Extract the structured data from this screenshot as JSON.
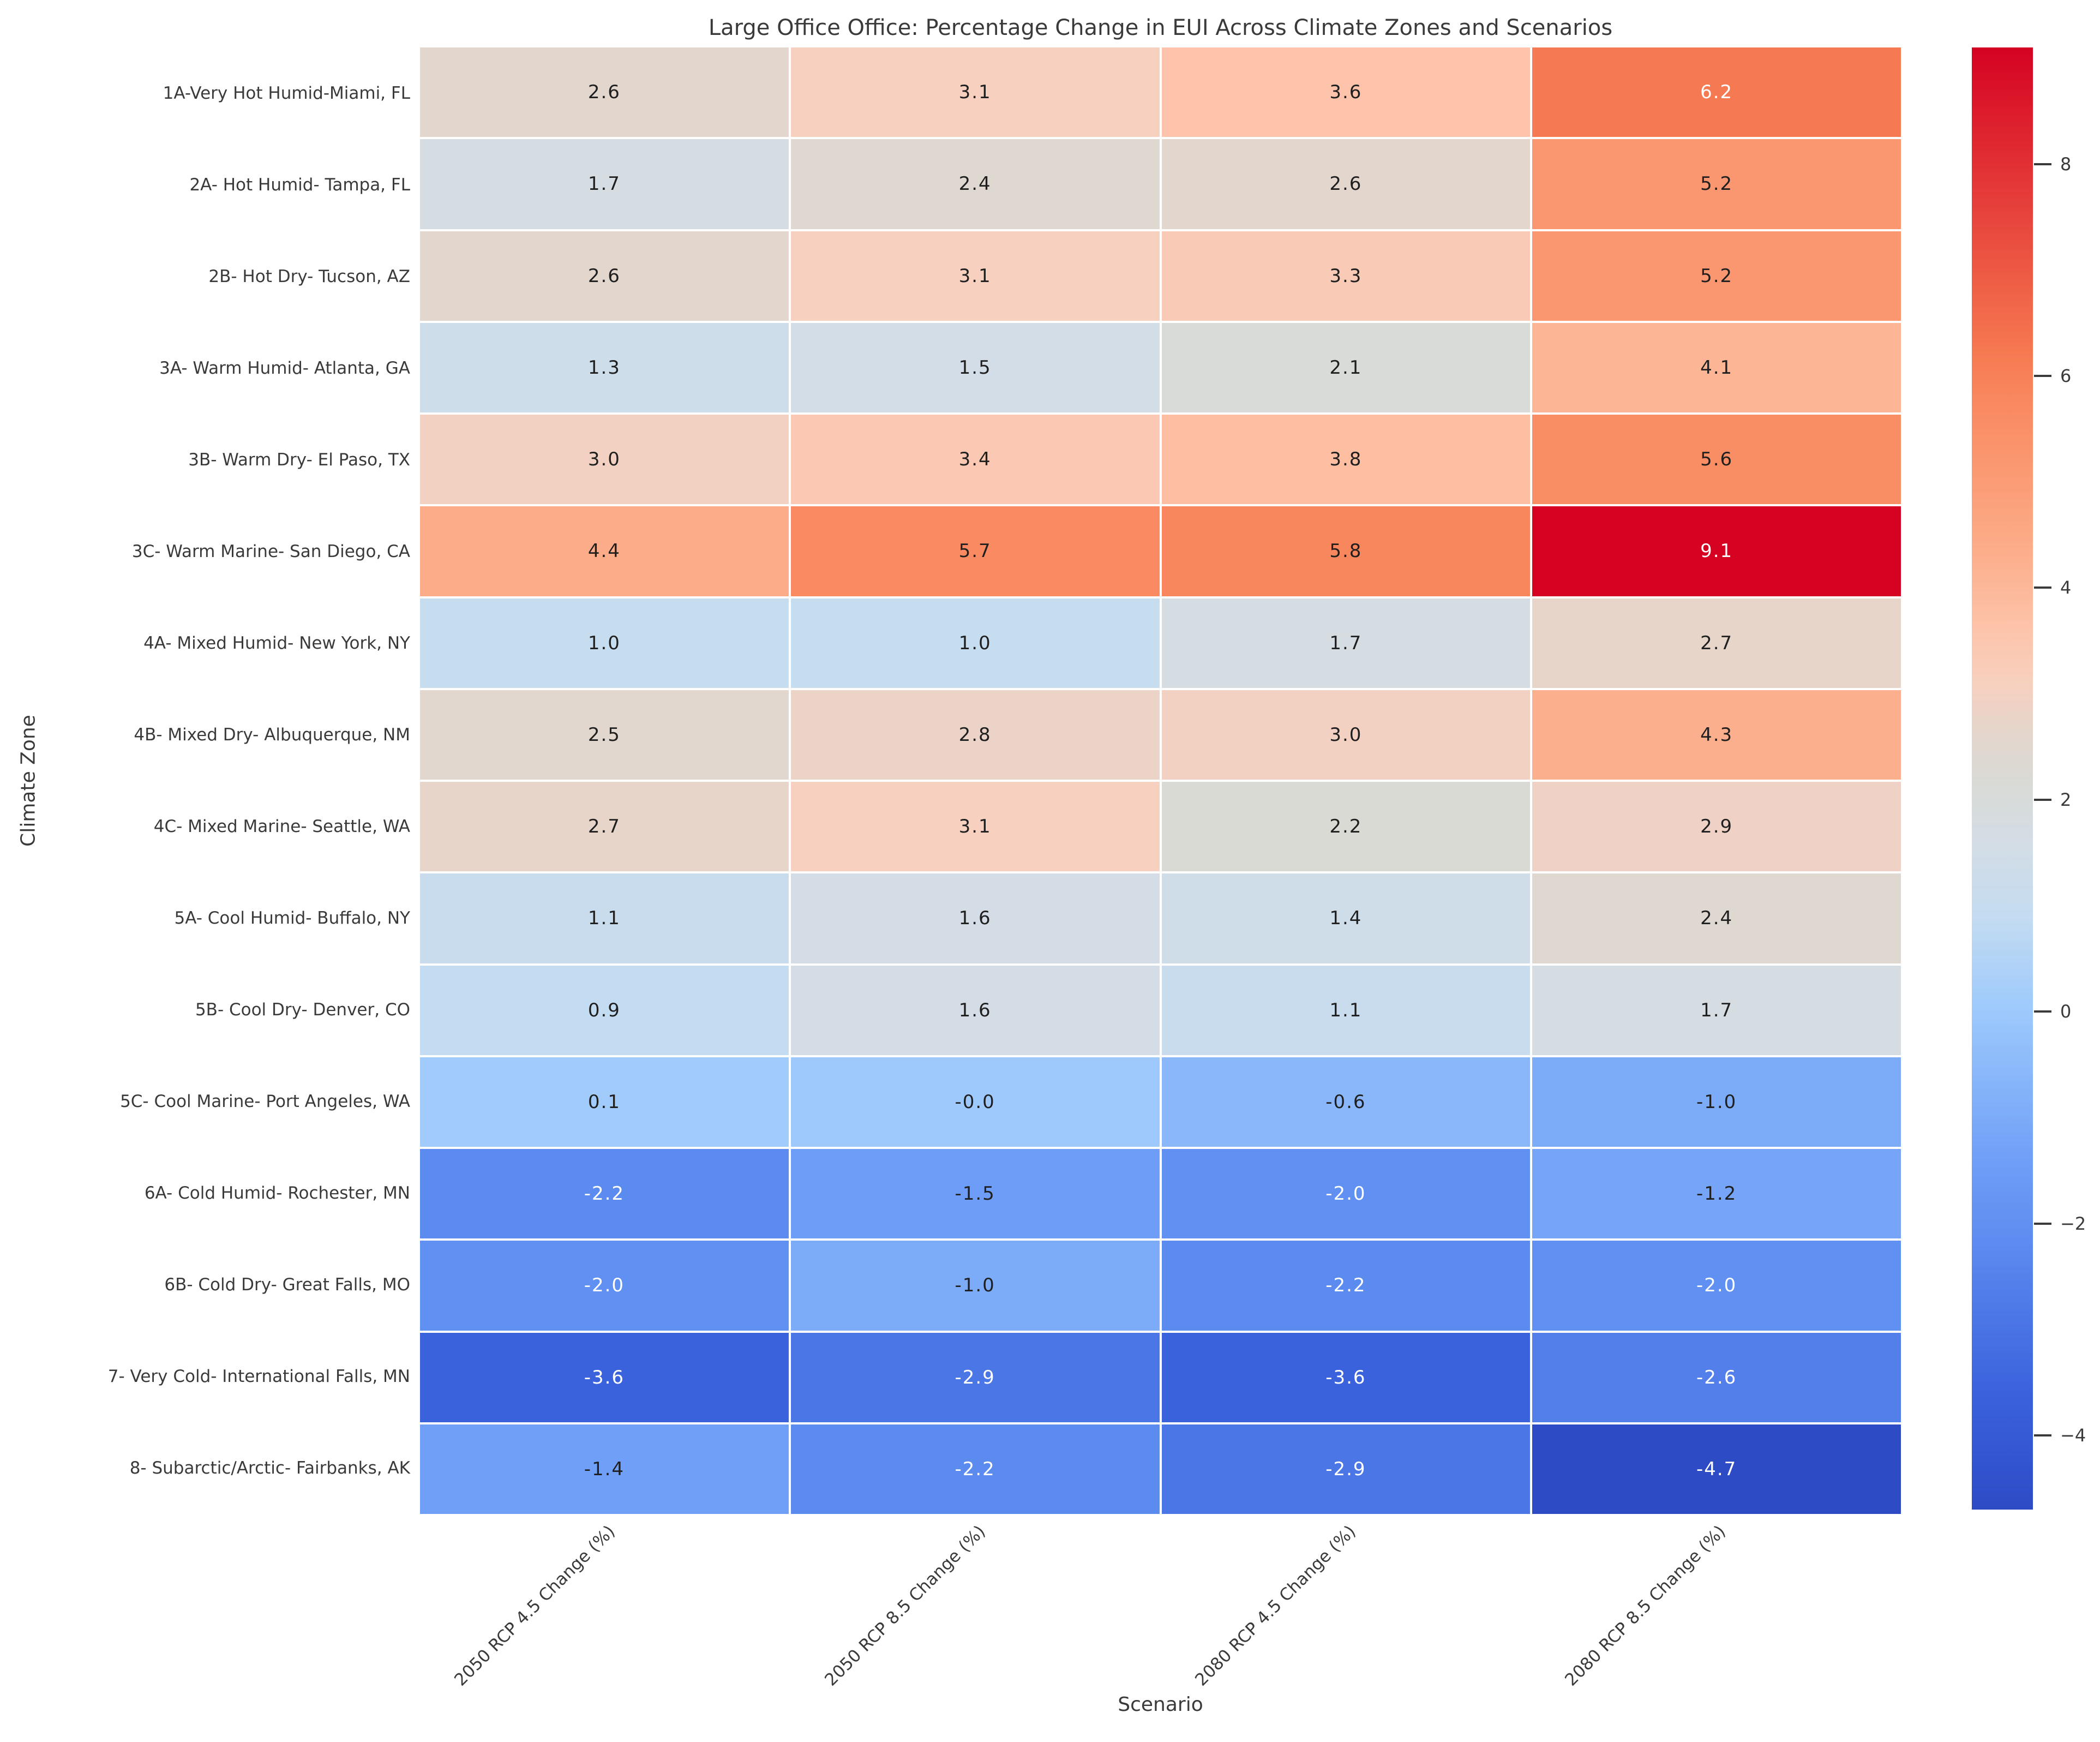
{
  "title": "Large Office Office: Percentage Change in EUI Across Climate Zones and Scenarios",
  "colors": {
    "background": "#ffffff",
    "text": "#3a3a3a",
    "annotation_dark": "#1f1f1f",
    "annotation_light": "#ffffff",
    "grid_gap": "#ffffff"
  },
  "chart_data": {
    "type": "heatmap",
    "title": "Large Office Office: Percentage Change in EUI Across Climate Zones and Scenarios",
    "xlabel": "Scenario",
    "ylabel": "Climate Zone",
    "legend_position": "right-colorbar",
    "grid": false,
    "columns": [
      "2050 RCP 4.5 Change (%)",
      "2050 RCP 8.5 Change (%)",
      "2080 RCP 4.5 Change (%)",
      "2080 RCP 8.5 Change (%)"
    ],
    "rows": [
      "1A-Very Hot Humid-Miami, FL",
      "2A- Hot Humid- Tampa, FL",
      "2B- Hot Dry- Tucson, AZ",
      "3A- Warm Humid- Atlanta, GA",
      "3B- Warm Dry- El Paso, TX",
      "3C- Warm Marine- San Diego, CA",
      "4A- Mixed Humid- New York, NY",
      "4B- Mixed Dry- Albuquerque, NM",
      "4C- Mixed Marine- Seattle, WA",
      "5A- Cool Humid- Buffalo, NY",
      "5B- Cool Dry- Denver, CO",
      "5C- Cool Marine- Port Angeles, WA",
      "6A- Cold Humid- Rochester, MN",
      "6B- Cold Dry- Great Falls, MO",
      "7- Very Cold- International Falls, MN",
      "8- Subarctic/Arctic- Fairbanks, AK"
    ],
    "values": [
      [
        2.6,
        3.1,
        3.6,
        6.2
      ],
      [
        1.7,
        2.4,
        2.6,
        5.2
      ],
      [
        2.6,
        3.1,
        3.3,
        5.2
      ],
      [
        1.3,
        1.5,
        2.1,
        4.1
      ],
      [
        3.0,
        3.4,
        3.8,
        5.6
      ],
      [
        4.4,
        5.7,
        5.8,
        9.1
      ],
      [
        1.0,
        1.0,
        1.7,
        2.7
      ],
      [
        2.5,
        2.8,
        3.0,
        4.3
      ],
      [
        2.7,
        3.1,
        2.2,
        2.9
      ],
      [
        1.1,
        1.6,
        1.4,
        2.4
      ],
      [
        0.9,
        1.6,
        1.1,
        1.7
      ],
      [
        0.1,
        0.0,
        -0.6,
        -1.0
      ],
      [
        -2.2,
        -1.5,
        -2.0,
        -1.2
      ],
      [
        -2.0,
        -1.0,
        -2.2,
        -2.0
      ],
      [
        -3.6,
        -2.9,
        -3.6,
        -2.6
      ],
      [
        -1.4,
        -2.2,
        -2.9,
        -4.7
      ]
    ],
    "labels": [
      [
        "2.6",
        "3.1",
        "3.6",
        "6.2"
      ],
      [
        "1.7",
        "2.4",
        "2.6",
        "5.2"
      ],
      [
        "2.6",
        "3.1",
        "3.3",
        "5.2"
      ],
      [
        "1.3",
        "1.5",
        "2.1",
        "4.1"
      ],
      [
        "3.0",
        "3.4",
        "3.8",
        "5.6"
      ],
      [
        "4.4",
        "5.7",
        "5.8",
        "9.1"
      ],
      [
        "1.0",
        "1.0",
        "1.7",
        "2.7"
      ],
      [
        "2.5",
        "2.8",
        "3.0",
        "4.3"
      ],
      [
        "2.7",
        "3.1",
        "2.2",
        "2.9"
      ],
      [
        "1.1",
        "1.6",
        "1.4",
        "2.4"
      ],
      [
        "0.9",
        "1.6",
        "1.1",
        "1.7"
      ],
      [
        "0.1",
        "-0.0",
        "-0.6",
        "-1.0"
      ],
      [
        "-2.2",
        "-1.5",
        "-2.0",
        "-1.2"
      ],
      [
        "-2.0",
        "-1.0",
        "-2.2",
        "-2.0"
      ],
      [
        "-3.6",
        "-2.9",
        "-3.6",
        "-2.6"
      ],
      [
        "-1.4",
        "-2.2",
        "-2.9",
        "-4.7"
      ]
    ],
    "vmin": -4.7,
    "vmax": 9.1,
    "colorbar": {
      "ticks": [
        8,
        6,
        4,
        2,
        0,
        -2,
        -4
      ],
      "tick_labels": [
        "8",
        "6",
        "4",
        "2",
        "0",
        "−2",
        "−4"
      ]
    },
    "colormap": {
      "name": "coolwarm",
      "anchors": [
        {
          "t": 0.0,
          "color": "#2e4bc6"
        },
        {
          "t": 0.08,
          "color": "#3b62dd"
        },
        {
          "t": 0.181,
          "color": "#5b8bef"
        },
        {
          "t": 0.239,
          "color": "#6f9ff7"
        },
        {
          "t": 0.341,
          "color": "#9dc9fc"
        },
        {
          "t": 0.406,
          "color": "#c4dcf1"
        },
        {
          "t": 0.457,
          "color": "#d4dde5"
        },
        {
          "t": 0.493,
          "color": "#d8dbd7"
        },
        {
          "t": 0.529,
          "color": "#e3d6cd"
        },
        {
          "t": 0.565,
          "color": "#f7d0bf"
        },
        {
          "t": 0.601,
          "color": "#fdc4ab"
        },
        {
          "t": 0.659,
          "color": "#fcac88"
        },
        {
          "t": 0.754,
          "color": "#f98a61"
        },
        {
          "t": 0.79,
          "color": "#f67a51"
        },
        {
          "t": 1.0,
          "color": "#d50222"
        }
      ]
    }
  }
}
